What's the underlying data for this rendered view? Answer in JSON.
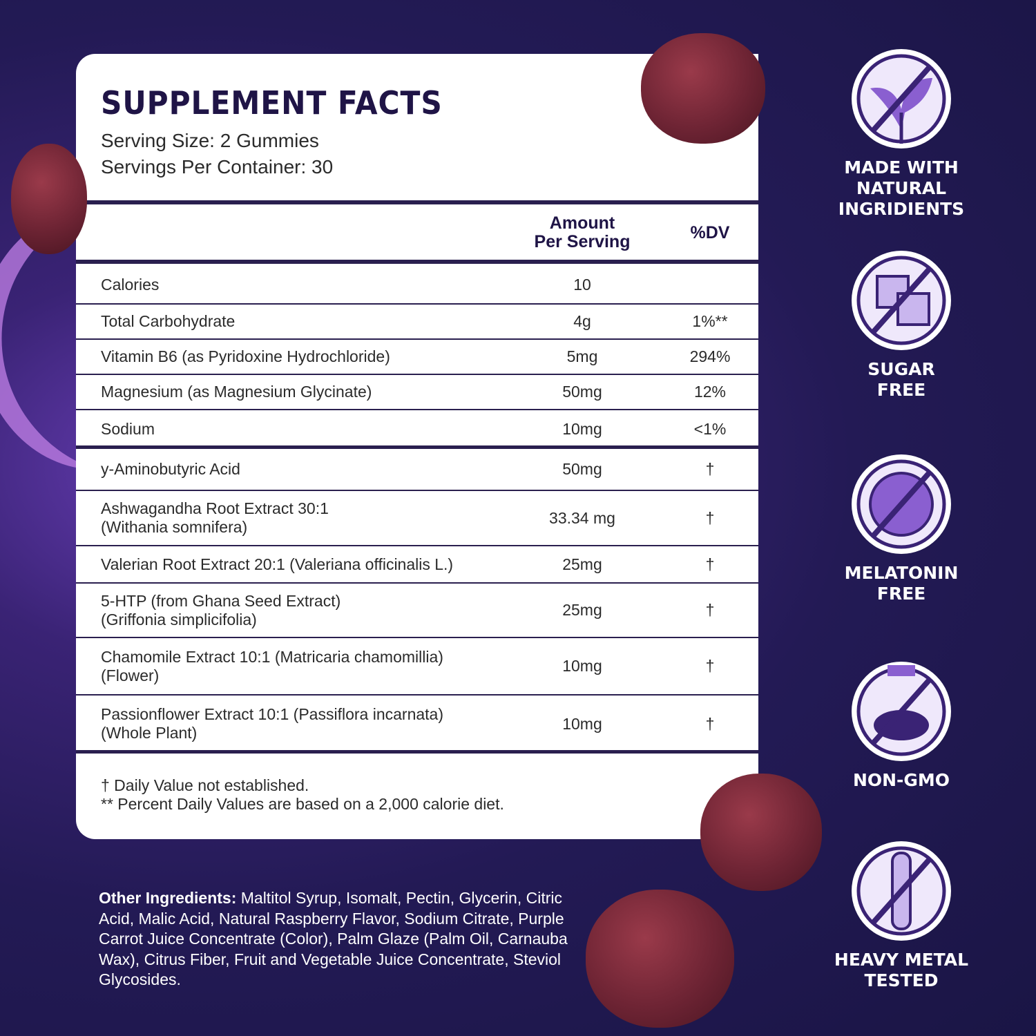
{
  "title": "SUPPLEMENT FACTS",
  "serving_size": "Serving Size: 2 Gummies",
  "servings_per_container": "Servings Per Container: 30",
  "table": {
    "header": {
      "amount": [
        "Amount",
        "Per Serving"
      ],
      "dv": "%DV"
    },
    "rows": [
      {
        "name": [
          "Calories"
        ],
        "amount": "10"
      },
      {
        "name": [
          "Total Carbohydrate"
        ],
        "amount": "4g",
        "dv": "1%**"
      },
      {
        "name": [
          "Vitamin B6 (as Pyridoxine Hydrochloride)"
        ],
        "amount": "5mg",
        "dv": "294%"
      },
      {
        "name": [
          "Magnesium (as Magnesium Glycinate)"
        ],
        "amount": "50mg",
        "dv": "12%"
      },
      {
        "name": [
          "Sodium"
        ],
        "amount": "10mg",
        "dv": "<1%"
      },
      {
        "name": [
          "y-Aminobutyric Acid"
        ],
        "amount": "50mg",
        "dv": "†"
      },
      {
        "name": [
          "Ashwagandha Root Extract 30:1",
          "(Withania somnifera)"
        ],
        "amount": "33.34 mg",
        "dv": "†"
      },
      {
        "name": [
          "Valerian Root Extract 20:1 (Valeriana officinalis L.)"
        ],
        "amount": "25mg",
        "dv": "†"
      },
      {
        "name": [
          "5-HTP (from Ghana Seed Extract)",
          "(Griffonia simplicifolia)"
        ],
        "amount": "25mg",
        "dv": "†"
      },
      {
        "name": [
          "Chamomile Extract 10:1 (Matricaria chamomillia)",
          "(Flower)"
        ],
        "amount": "10mg",
        "dv": "†"
      },
      {
        "name": [
          "Passionflower Extract 10:1 (Passiflora incarnata)",
          "(Whole Plant)"
        ],
        "amount": "10mg",
        "dv": "†"
      }
    ]
  },
  "footnotes": [
    "†  Daily Value not established.",
    "** Percent Daily Values are based on a 2,000 calorie diet."
  ],
  "other_ingredients": {
    "label": "Other Ingredients:",
    "text": "Maltitol Syrup, Isomalt, Pectin, Glycerin, Citric Acid, Malic Acid, Natural Raspberry Flavor, Sodium Citrate, Purple Carrot Juice Concentrate (Color), Palm Glaze (Palm Oil, Carnauba Wax), Citrus Fiber, Fruit and Vegetable Juice Concentrate, Steviol Glycosides."
  },
  "badges": [
    {
      "label": [
        "MADE WITH",
        "NATURAL INGRIDIENTS"
      ]
    },
    {
      "label": [
        "SUGAR",
        "FREE"
      ]
    },
    {
      "label": [
        "MELATONIN",
        "FREE"
      ]
    },
    {
      "label": [
        "NON-GMO"
      ]
    },
    {
      "label": [
        "HEAVY METAL",
        "TESTED"
      ]
    }
  ]
}
